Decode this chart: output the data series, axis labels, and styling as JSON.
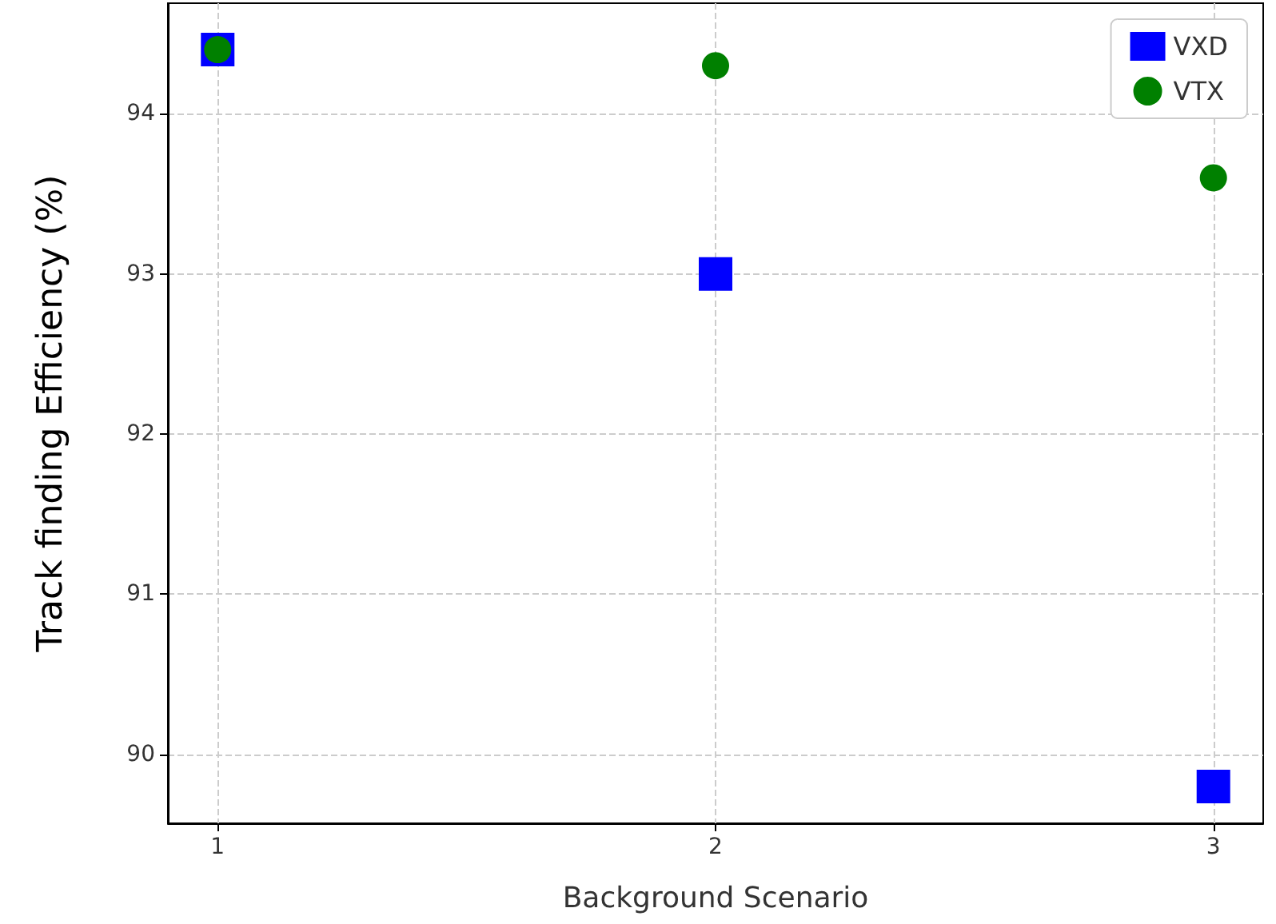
{
  "chart_data": {
    "type": "scatter",
    "xlabel": "Background Scenario",
    "ylabel": "Track finding Efficiency (%)",
    "x": [
      1,
      2,
      3
    ],
    "series": [
      {
        "name": "VXD",
        "color": "#0000ff",
        "marker": "square",
        "values": [
          94.4,
          93.0,
          89.8
        ]
      },
      {
        "name": "VTX",
        "color": "#008000",
        "marker": "circle",
        "values": [
          94.4,
          94.3,
          93.6
        ]
      }
    ],
    "xlim": [
      0.9,
      3.1
    ],
    "xticks": [
      1,
      2,
      3
    ],
    "ylim": [
      89.57,
      94.69
    ],
    "yticks": [
      90,
      91,
      92,
      93,
      94
    ],
    "grid": true,
    "legend": "top right"
  }
}
